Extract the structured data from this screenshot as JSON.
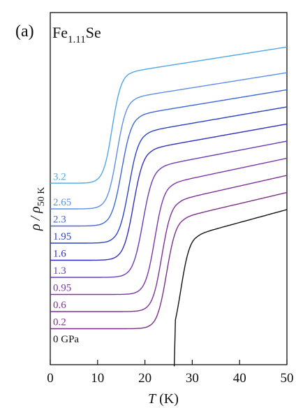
{
  "chart_data": {
    "type": "line",
    "panel_label": "(a)",
    "title": {
      "base": "Fe",
      "sub": "1.11",
      "tail": "Se"
    },
    "xlabel": {
      "var": "T",
      "unit": " (K)"
    },
    "ylabel": {
      "main": "ρ / ρ",
      "sub": "50 K"
    },
    "xlim": [
      0,
      50
    ],
    "xticks": [
      0,
      10,
      20,
      30,
      40,
      50
    ],
    "xtick_labels": [
      "0",
      "10",
      "20",
      "30",
      "40",
      "50"
    ],
    "y_ticks_shown": false,
    "grid": false,
    "series": [
      {
        "name": "0 GPa",
        "pressure": 0,
        "label": "0 GPa",
        "color": "#111111",
        "tc_onset": 31,
        "tc_mid": 27.5,
        "width": 1.6,
        "offset": 0,
        "cut": 26.2
      },
      {
        "name": "0.2",
        "pressure": 0.2,
        "label": "0.2",
        "color": "#7a2f86",
        "tc_onset": 28,
        "tc_mid": 24.5,
        "width": 1.7,
        "offset": 1
      },
      {
        "name": "0.6",
        "pressure": 0.6,
        "label": "0.6",
        "color": "#7d3196",
        "tc_onset": 27,
        "tc_mid": 23.5,
        "width": 1.7,
        "offset": 2
      },
      {
        "name": "0.95",
        "pressure": 0.95,
        "label": "0.95",
        "color": "#7b35a8",
        "tc_onset": 25.5,
        "tc_mid": 22,
        "width": 1.7,
        "offset": 3
      },
      {
        "name": "1.3",
        "pressure": 1.3,
        "label": "1.3",
        "color": "#6a3ab7",
        "tc_onset": 23,
        "tc_mid": 19.5,
        "width": 1.8,
        "offset": 4
      },
      {
        "name": "1.6",
        "pressure": 1.6,
        "label": "1.6",
        "color": "#2f2fc0",
        "tc_onset": 21,
        "tc_mid": 17.5,
        "width": 1.8,
        "offset": 5
      },
      {
        "name": "1.95",
        "pressure": 1.95,
        "label": "1.95",
        "color": "#2c42c4",
        "tc_onset": 20,
        "tc_mid": 16.5,
        "width": 1.8,
        "offset": 6
      },
      {
        "name": "2.3",
        "pressure": 2.3,
        "label": "2.3",
        "color": "#3f66d6",
        "tc_onset": 18.5,
        "tc_mid": 15,
        "width": 1.8,
        "offset": 7
      },
      {
        "name": "2.65",
        "pressure": 2.65,
        "label": "2.65",
        "color": "#5e8fe6",
        "tc_onset": 17.5,
        "tc_mid": 14,
        "width": 1.7,
        "offset": 8
      },
      {
        "name": "3.2",
        "pressure": 3.2,
        "label": "3.2",
        "color": "#4fa7e8",
        "tc_onset": 17,
        "tc_mid": 13,
        "width": 1.6,
        "offset": 9.5
      }
    ]
  }
}
